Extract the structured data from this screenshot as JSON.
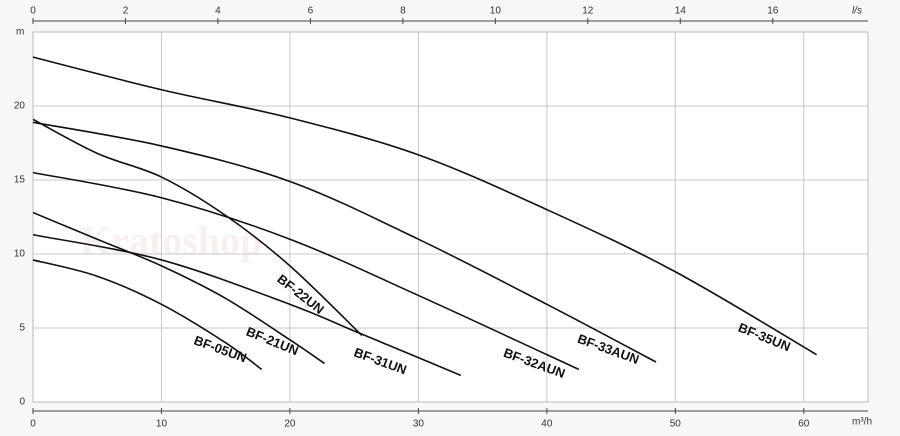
{
  "chart_data": {
    "type": "line",
    "watermark": "Kratoshop",
    "ylabel": "m",
    "xlabel": "m³/h",
    "x2label": "l/s",
    "xlim": [
      0,
      65
    ],
    "xticks": [
      0,
      10,
      20,
      30,
      40,
      50,
      60
    ],
    "x2lim": [
      0,
      18.06
    ],
    "x2ticks": [
      0,
      2,
      4,
      6,
      8,
      10,
      12,
      14,
      16
    ],
    "ylim": [
      0,
      25
    ],
    "yticks": [
      0,
      5,
      10,
      15,
      20
    ],
    "grid": true,
    "series": [
      {
        "name": "BF-05UN",
        "color": "#111111",
        "x": [
          0,
          5,
          10,
          15,
          17.8
        ],
        "values": [
          9.6,
          8.5,
          6.6,
          4.0,
          2.2
        ]
      },
      {
        "name": "BF-21UN",
        "color": "#111111",
        "x": [
          0,
          5,
          10,
          15,
          20,
          22.7
        ],
        "values": [
          12.8,
          11,
          9.2,
          7,
          4.2,
          2.6
        ]
      },
      {
        "name": "BF-22UN",
        "color": "#111111",
        "x": [
          0,
          5,
          10,
          15,
          20,
          25.6
        ],
        "values": [
          19.1,
          16.8,
          15.2,
          12.6,
          9.2,
          4.5
        ]
      },
      {
        "name": "BF-31UN",
        "color": "#111111",
        "x": [
          0,
          10,
          20,
          25,
          30,
          33.3
        ],
        "values": [
          11.3,
          9.6,
          6.6,
          4.8,
          3,
          1.8
        ]
      },
      {
        "name": "BF-32AUN",
        "color": "#111111",
        "x": [
          0,
          10,
          20,
          30,
          40,
          42.5
        ],
        "values": [
          15.5,
          13.8,
          11,
          7.2,
          3.2,
          2.2
        ]
      },
      {
        "name": "BF-33AUN",
        "color": "#111111",
        "x": [
          0,
          10,
          20,
          30,
          40,
          48.5
        ],
        "values": [
          18.9,
          17.3,
          14.9,
          11,
          6.6,
          2.7
        ]
      },
      {
        "name": "BF-35UN",
        "color": "#111111",
        "x": [
          0,
          10,
          20,
          30,
          40,
          50,
          61
        ],
        "values": [
          23.3,
          21.1,
          19.2,
          16.7,
          13,
          8.8,
          3.2
        ]
      }
    ]
  }
}
